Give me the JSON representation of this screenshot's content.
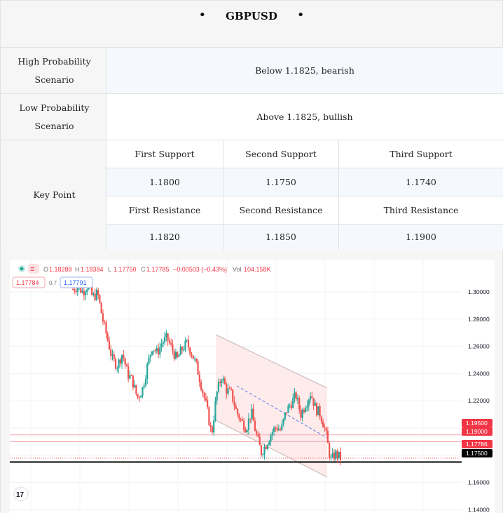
{
  "header": {
    "title": "GBPUSD",
    "bullet": "•"
  },
  "scenarios": {
    "high": {
      "label": "High Probability Scenario",
      "value": "Below 1.1825, bearish"
    },
    "low": {
      "label": "Low Probability Scenario",
      "value": "Above 1.1825, bullish"
    }
  },
  "key_point": {
    "label": "Key Point",
    "supports": [
      {
        "label": "First Support",
        "value": "1.1800"
      },
      {
        "label": "Second Support",
        "value": "1.1750"
      },
      {
        "label": "Third Support",
        "value": "1.1740"
      }
    ],
    "resistances": [
      {
        "label": "First Resistance",
        "value": "1.1820"
      },
      {
        "label": "Second Resistance",
        "value": "1.1850"
      },
      {
        "label": "Third Resistance",
        "value": "1.1900"
      }
    ]
  },
  "chart": {
    "ohlc": {
      "o_label": "O",
      "o": "1.18288",
      "h_label": "H",
      "h": "1.18384",
      "l_label": "L",
      "l": "1.17750",
      "c_label": "C",
      "c": "1.17785",
      "change": "−0.00503 (−0.43%)",
      "vol_label": "Vol",
      "vol": "104.158K"
    },
    "sell_price": "1.17784",
    "spread": "0.7",
    "buy_price": "1.17791",
    "logo_text": "17",
    "colors": {
      "up": "#26a69a",
      "down": "#ef5350",
      "channel": "#fde4e6",
      "level": "#f4a9b0"
    },
    "price_tags": [
      {
        "value": "1.19500",
        "price": 1.195,
        "color": "#f23645"
      },
      {
        "value": "1.19000",
        "price": 1.19,
        "color": "#f23645"
      },
      {
        "value": "1.17786",
        "price": 1.17786,
        "color": "#f23645"
      },
      {
        "value": "1.17500",
        "price": 1.175,
        "color": "#000000"
      }
    ]
  },
  "chart_data": {
    "type": "candlestick",
    "yaxis_ticks": [
      "1.30000",
      "1.28000",
      "1.26000",
      "1.24000",
      "1.22000",
      "1.20000",
      "1.16000",
      "1.14000"
    ],
    "ylim": [
      1.135,
      1.31
    ],
    "horizontal_levels": [
      1.195,
      1.19,
      1.175
    ],
    "close_path": [
      1.302,
      1.304,
      1.3,
      1.305,
      1.296,
      1.299,
      1.28,
      1.265,
      1.25,
      1.246,
      1.255,
      1.24,
      1.235,
      1.222,
      1.228,
      1.245,
      1.26,
      1.255,
      1.263,
      1.266,
      1.258,
      1.25,
      1.258,
      1.262,
      1.255,
      1.245,
      1.23,
      1.215,
      1.195,
      1.225,
      1.238,
      1.228,
      1.225,
      1.212,
      1.205,
      1.2,
      1.212,
      1.195,
      1.182,
      1.188,
      1.196,
      1.201,
      1.198,
      1.212,
      1.218,
      1.224,
      1.21,
      1.218,
      1.226,
      1.214,
      1.21,
      1.197,
      1.176,
      1.181,
      1.178
    ]
  }
}
